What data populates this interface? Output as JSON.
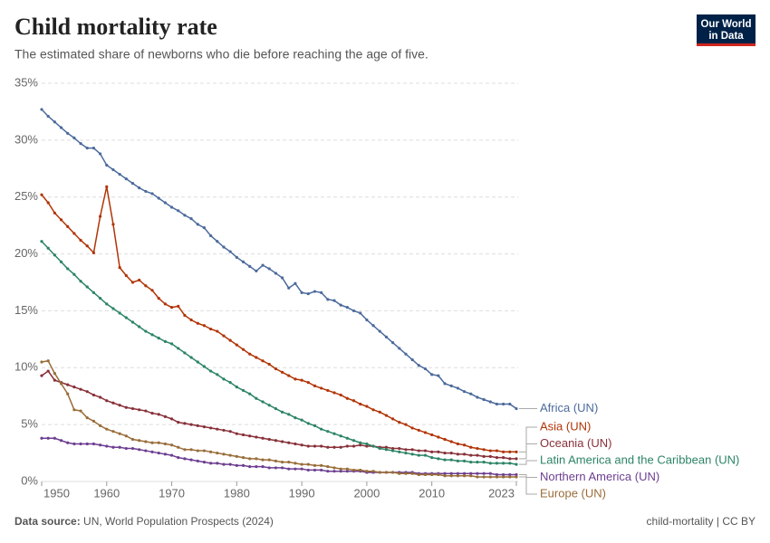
{
  "chart_data": {
    "type": "line",
    "title": "Child mortality rate",
    "subtitle": "The estimated share of newborns who die before reaching the age of five.",
    "logo": [
      "Our World",
      "in Data"
    ],
    "source_label": "Data source:",
    "source": "UN, World Population Prospects (2024)",
    "footer_right": "child-mortality | CC BY",
    "x": [
      1950,
      1951,
      1952,
      1953,
      1954,
      1955,
      1956,
      1957,
      1958,
      1959,
      1960,
      1961,
      1962,
      1963,
      1964,
      1965,
      1966,
      1967,
      1968,
      1969,
      1970,
      1971,
      1972,
      1973,
      1974,
      1975,
      1976,
      1977,
      1978,
      1979,
      1980,
      1981,
      1982,
      1983,
      1984,
      1985,
      1986,
      1987,
      1988,
      1989,
      1990,
      1991,
      1992,
      1993,
      1994,
      1995,
      1996,
      1997,
      1998,
      1999,
      2000,
      2001,
      2002,
      2003,
      2004,
      2005,
      2006,
      2007,
      2008,
      2009,
      2010,
      2011,
      2012,
      2013,
      2014,
      2015,
      2016,
      2017,
      2018,
      2019,
      2020,
      2021,
      2022,
      2023
    ],
    "xlim": [
      1950,
      2023
    ],
    "xticks": [
      1950,
      1960,
      1970,
      1980,
      1990,
      2000,
      2010,
      2023
    ],
    "ylim": [
      0,
      35
    ],
    "yticks": [
      {
        "value": 0,
        "label": "0%"
      },
      {
        "value": 5,
        "label": "5%"
      },
      {
        "value": 10,
        "label": "10%"
      },
      {
        "value": 15,
        "label": "15%"
      },
      {
        "value": 20,
        "label": "20%"
      },
      {
        "value": 25,
        "label": "25%"
      },
      {
        "value": 30,
        "label": "30%"
      },
      {
        "value": 35,
        "label": "35%"
      }
    ],
    "grid": true,
    "series": [
      {
        "name": "Africa (UN)",
        "color": "#4c6a9c",
        "values": [
          32.7,
          32.1,
          31.6,
          31.1,
          30.6,
          30.2,
          29.7,
          29.3,
          29.3,
          28.8,
          27.8,
          27.4,
          27.0,
          26.6,
          26.2,
          25.8,
          25.5,
          25.3,
          24.9,
          24.5,
          24.1,
          23.8,
          23.4,
          23.1,
          22.6,
          22.3,
          21.6,
          21.1,
          20.6,
          20.2,
          19.7,
          19.3,
          18.9,
          18.5,
          19.0,
          18.7,
          18.3,
          17.9,
          17.0,
          17.4,
          16.6,
          16.5,
          16.7,
          16.6,
          16.0,
          15.9,
          15.5,
          15.3,
          15.0,
          14.8,
          14.2,
          13.7,
          13.2,
          12.7,
          12.2,
          11.7,
          11.2,
          10.7,
          10.2,
          9.9,
          9.4,
          9.3,
          8.6,
          8.4,
          8.2,
          7.9,
          7.7,
          7.4,
          7.2,
          7.0,
          6.8,
          6.8,
          6.8,
          6.4
        ]
      },
      {
        "name": "Asia (UN)",
        "color": "#b13507",
        "values": [
          25.2,
          24.5,
          23.6,
          23.0,
          22.4,
          21.8,
          21.2,
          20.7,
          20.1,
          23.3,
          25.9,
          22.6,
          18.8,
          18.1,
          17.5,
          17.7,
          17.2,
          16.8,
          16.1,
          15.6,
          15.3,
          15.4,
          14.6,
          14.2,
          13.9,
          13.7,
          13.4,
          13.2,
          12.8,
          12.4,
          12.0,
          11.6,
          11.2,
          10.9,
          10.6,
          10.3,
          9.9,
          9.6,
          9.3,
          9.0,
          8.9,
          8.7,
          8.4,
          8.2,
          8.0,
          7.8,
          7.6,
          7.3,
          7.1,
          6.8,
          6.6,
          6.3,
          6.1,
          5.8,
          5.5,
          5.2,
          5.0,
          4.7,
          4.5,
          4.3,
          4.1,
          3.9,
          3.7,
          3.5,
          3.3,
          3.2,
          3.0,
          2.9,
          2.8,
          2.7,
          2.7,
          2.6,
          2.6,
          2.6
        ]
      },
      {
        "name": "Oceania (UN)",
        "color": "#883039",
        "values": [
          9.3,
          9.7,
          8.9,
          8.7,
          8.5,
          8.3,
          8.1,
          7.9,
          7.6,
          7.4,
          7.1,
          6.9,
          6.7,
          6.5,
          6.4,
          6.3,
          6.2,
          6.0,
          5.9,
          5.7,
          5.5,
          5.2,
          5.1,
          5.0,
          4.9,
          4.8,
          4.7,
          4.6,
          4.5,
          4.4,
          4.2,
          4.1,
          4.0,
          3.9,
          3.8,
          3.7,
          3.6,
          3.5,
          3.4,
          3.3,
          3.2,
          3.1,
          3.1,
          3.1,
          3.0,
          3.0,
          3.0,
          3.1,
          3.1,
          3.2,
          3.1,
          3.1,
          3.0,
          3.0,
          2.9,
          2.9,
          2.8,
          2.8,
          2.7,
          2.7,
          2.6,
          2.6,
          2.5,
          2.5,
          2.4,
          2.4,
          2.3,
          2.3,
          2.2,
          2.2,
          2.1,
          2.1,
          2.0,
          2.0
        ]
      },
      {
        "name": "Latin America and the Caribbean (UN)",
        "color": "#2c8465",
        "values": [
          21.1,
          20.5,
          19.9,
          19.3,
          18.7,
          18.2,
          17.6,
          17.1,
          16.6,
          16.1,
          15.6,
          15.2,
          14.8,
          14.4,
          14.0,
          13.6,
          13.2,
          12.9,
          12.6,
          12.3,
          12.1,
          11.7,
          11.3,
          10.9,
          10.5,
          10.1,
          9.7,
          9.4,
          9.0,
          8.7,
          8.3,
          8.0,
          7.7,
          7.3,
          7.0,
          6.7,
          6.4,
          6.1,
          5.9,
          5.6,
          5.4,
          5.1,
          4.9,
          4.6,
          4.4,
          4.2,
          4.0,
          3.8,
          3.6,
          3.4,
          3.3,
          3.1,
          2.9,
          2.8,
          2.7,
          2.6,
          2.5,
          2.4,
          2.3,
          2.3,
          2.1,
          2.0,
          1.9,
          1.9,
          1.8,
          1.8,
          1.7,
          1.7,
          1.7,
          1.6,
          1.6,
          1.6,
          1.6,
          1.5
        ]
      },
      {
        "name": "Northern America (UN)",
        "color": "#6d3e91",
        "values": [
          3.8,
          3.8,
          3.8,
          3.6,
          3.4,
          3.3,
          3.3,
          3.3,
          3.3,
          3.2,
          3.1,
          3.0,
          3.0,
          2.9,
          2.9,
          2.8,
          2.7,
          2.6,
          2.5,
          2.4,
          2.3,
          2.1,
          2.0,
          1.9,
          1.8,
          1.7,
          1.6,
          1.6,
          1.5,
          1.5,
          1.4,
          1.4,
          1.3,
          1.3,
          1.3,
          1.2,
          1.2,
          1.2,
          1.1,
          1.1,
          1.1,
          1.0,
          1.0,
          1.0,
          0.9,
          0.9,
          0.9,
          0.9,
          0.9,
          0.9,
          0.8,
          0.8,
          0.8,
          0.8,
          0.8,
          0.8,
          0.8,
          0.8,
          0.7,
          0.7,
          0.7,
          0.7,
          0.7,
          0.7,
          0.7,
          0.7,
          0.7,
          0.7,
          0.7,
          0.7,
          0.6,
          0.6,
          0.6,
          0.6
        ]
      },
      {
        "name": "Europe (UN)",
        "color": "#996d39",
        "values": [
          10.5,
          10.6,
          9.5,
          8.6,
          7.7,
          6.3,
          6.2,
          5.6,
          5.3,
          4.9,
          4.6,
          4.4,
          4.2,
          4.0,
          3.7,
          3.6,
          3.5,
          3.4,
          3.4,
          3.3,
          3.2,
          3.0,
          2.8,
          2.8,
          2.7,
          2.7,
          2.6,
          2.5,
          2.4,
          2.3,
          2.2,
          2.1,
          2.0,
          2.0,
          1.9,
          1.9,
          1.8,
          1.7,
          1.7,
          1.6,
          1.5,
          1.5,
          1.4,
          1.4,
          1.3,
          1.2,
          1.1,
          1.1,
          1.0,
          1.0,
          0.9,
          0.9,
          0.8,
          0.8,
          0.8,
          0.7,
          0.7,
          0.7,
          0.6,
          0.6,
          0.6,
          0.6,
          0.5,
          0.5,
          0.5,
          0.5,
          0.5,
          0.4,
          0.4,
          0.4,
          0.4,
          0.4,
          0.4,
          0.4
        ]
      }
    ]
  }
}
